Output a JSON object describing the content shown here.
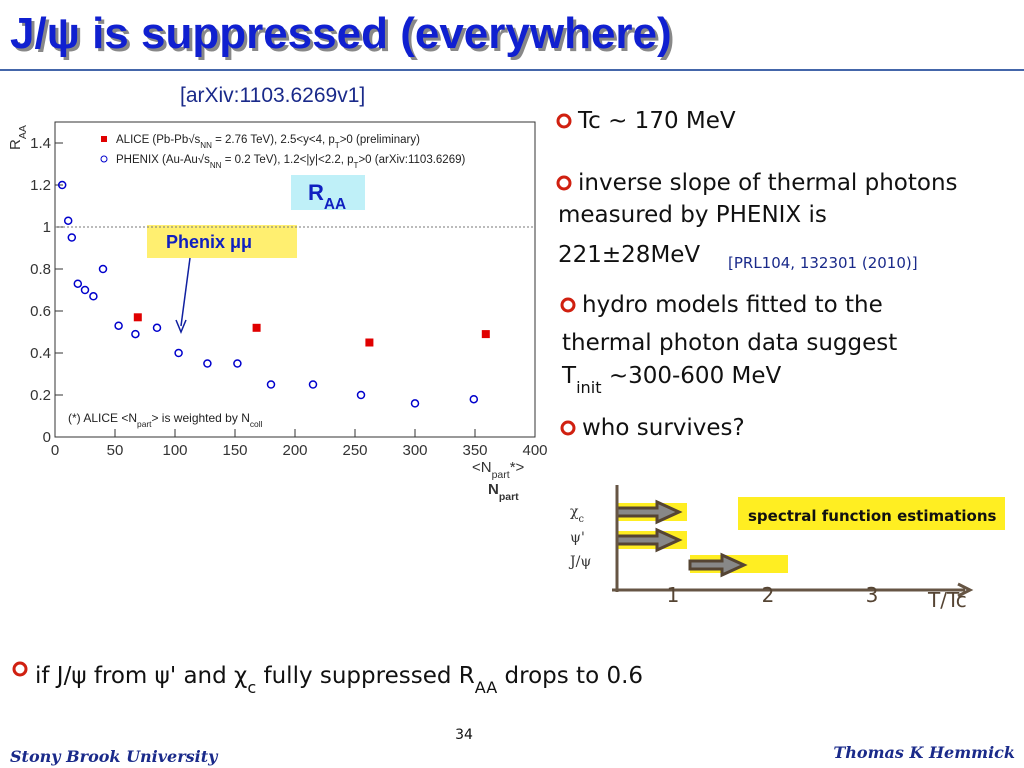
{
  "title": "J/ψ is suppressed (everywhere)",
  "reference": "[arXiv:1103.6269v1]",
  "plot": {
    "type": "scatter",
    "y_label": [
      "R",
      "AA"
    ],
    "x_label": [
      "<N",
      "part",
      "*>"
    ],
    "x_label2": [
      "N",
      "part"
    ],
    "xlim": [
      0,
      400
    ],
    "xticks": [
      0,
      50,
      100,
      150,
      200,
      250,
      300,
      350,
      400
    ],
    "ylim": [
      0,
      1.5
    ],
    "yticks": [
      0,
      0.2,
      0.4,
      0.6,
      0.8,
      1,
      1.2,
      1.4
    ],
    "reference_line": 1,
    "series": [
      {
        "name": [
          "ALICE (Pb-Pb√s",
          "NN",
          " = 2.76 TeV), 2.5<y<4, p",
          "T",
          ">0 (preliminary)"
        ],
        "color": "#e00000",
        "marker": "square",
        "x": [
          69,
          168,
          262,
          359
        ],
        "values": [
          0.57,
          0.52,
          0.45,
          0.49
        ]
      },
      {
        "name": [
          "PHENIX (Au-Au√s",
          "NN",
          " = 0.2 TeV), 1.2<|y|<2.2, p",
          "T",
          ">0 (arXiv:1103.6269)"
        ],
        "color": "#0000cc",
        "marker": "circle",
        "x": [
          6,
          11,
          14,
          19,
          25,
          32,
          40,
          53,
          67,
          85,
          103,
          127,
          152,
          180,
          215,
          255,
          300,
          349
        ],
        "values": [
          1.2,
          1.03,
          0.95,
          0.73,
          0.7,
          0.67,
          0.8,
          0.53,
          0.49,
          0.52,
          0.4,
          0.35,
          0.35,
          0.25,
          0.25,
          0.2,
          0.16,
          0.18
        ]
      }
    ],
    "note": [
      "(*) ALICE <N",
      "part",
      "> is weighted by N",
      "coll"
    ],
    "inset_label": [
      "R",
      "AA"
    ],
    "annotation": "Phenix μμ"
  },
  "bullets": [
    {
      "lines": [
        [
          "Tc ~ 170 MeV"
        ]
      ]
    },
    {
      "lines": [
        [
          "inverse slope of thermal photons"
        ],
        [
          "measured by PHENIX  is"
        ],
        [
          "221±28MeV"
        ]
      ],
      "citation": "[PRL104, 132301 (2010)]"
    },
    {
      "lines": [
        [
          "hydro models fitted to the"
        ],
        [
          "thermal photon data suggest"
        ],
        [
          "T",
          "init",
          " ~300-600 MeV"
        ]
      ]
    },
    {
      "lines": [
        [
          "who survives?"
        ]
      ]
    }
  ],
  "diagram": {
    "states": [
      [
        "χ",
        "c"
      ],
      [
        "ψ'"
      ],
      [
        "J/ψ"
      ]
    ],
    "ticks": [
      "1",
      "2",
      "3"
    ],
    "axis_label": "T/Tc",
    "box": "spectral function estimations"
  },
  "conclusion": [
    "if J/ψ from ψ' and χ",
    "c",
    " fully suppressed R",
    "AA",
    " drops to 0.6"
  ],
  "footer": {
    "left": "Stony Brook University",
    "page": "34",
    "right": "Thomas K Hemmick"
  }
}
